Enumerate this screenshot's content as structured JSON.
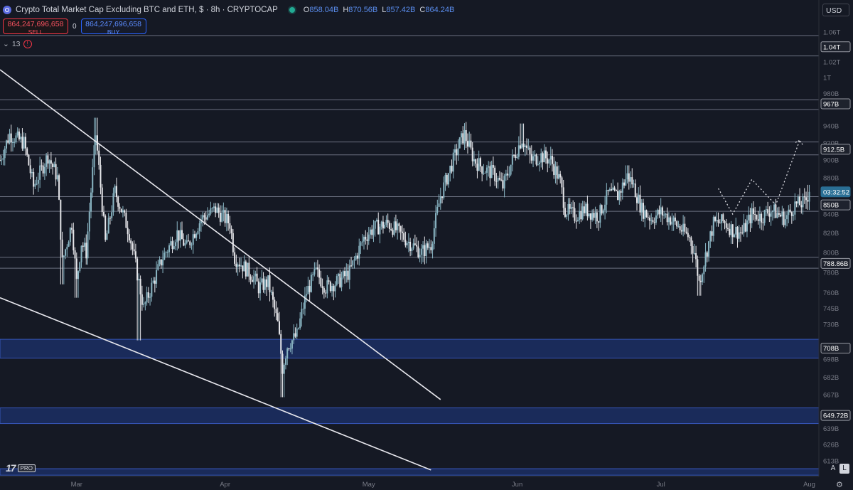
{
  "header": {
    "title": "Crypto Total Market Cap Excluding BTC and ETH, $ · 8h · CRYPTOCAP",
    "ohlc": [
      {
        "k": "O",
        "v": "858.04B"
      },
      {
        "k": "H",
        "v": "870.56B"
      },
      {
        "k": "L",
        "v": "857.42B"
      },
      {
        "k": "C",
        "v": "864.24B"
      }
    ]
  },
  "trade": {
    "sell_price": "864,247,696,658",
    "sell_label": "SELL",
    "spread": "0",
    "buy_price": "864,247,696,658",
    "buy_label": "BUY"
  },
  "indicators": {
    "count": "13",
    "error_mark": "!"
  },
  "currency": "USD",
  "logo": {
    "pro": "PRO"
  },
  "scale_buttons": {
    "auto": "A",
    "log": "L"
  },
  "colors": {
    "background": "#151924",
    "candle_up": "#8ab6c4",
    "candle_down": "#e6e6ea",
    "trendline": "#e8e8ee",
    "zone": "#1f3a87",
    "zone_border": "#3656b8",
    "level_line": "#6b7080",
    "price_tag": "#2a6f95"
  },
  "chart_data": {
    "type": "candlestick",
    "title": "Crypto Total Market Cap Excluding BTC and ETH, $ · 8h · CRYPTOCAP",
    "y_scale": "log",
    "ylim": [
      601,
      1104
    ],
    "y_ticks": [
      {
        "v": 1060,
        "label": "1.06T"
      },
      {
        "v": 1020,
        "label": "1.02T"
      },
      {
        "v": 1000,
        "label": "1T"
      },
      {
        "v": 980,
        "label": "980B"
      },
      {
        "v": 940,
        "label": "940B"
      },
      {
        "v": 920,
        "label": "920B"
      },
      {
        "v": 900,
        "label": "900B"
      },
      {
        "v": 880,
        "label": "880B"
      },
      {
        "v": 840,
        "label": "840B"
      },
      {
        "v": 820,
        "label": "820B"
      },
      {
        "v": 800,
        "label": "800B"
      },
      {
        "v": 780,
        "label": "780B"
      },
      {
        "v": 760,
        "label": "760B"
      },
      {
        "v": 745,
        "label": "745B"
      },
      {
        "v": 730,
        "label": "730B"
      },
      {
        "v": 698,
        "label": "698B"
      },
      {
        "v": 682,
        "label": "682B"
      },
      {
        "v": 667,
        "label": "667B"
      },
      {
        "v": 639,
        "label": "639B"
      },
      {
        "v": 626,
        "label": "626B"
      },
      {
        "v": 613,
        "label": "613B"
      }
    ],
    "x_labels": [
      {
        "date": "2024-03-01",
        "label": "Mar"
      },
      {
        "date": "2024-04-01",
        "label": "Apr"
      },
      {
        "date": "2024-05-01",
        "label": "May"
      },
      {
        "date": "2024-06-01",
        "label": "Jun"
      },
      {
        "date": "2024-07-01",
        "label": "Jul"
      },
      {
        "date": "2024-08-01",
        "label": "Aug"
      }
    ],
    "x_range": [
      "2024-02-14",
      "2024-08-03"
    ],
    "price_tags": [
      {
        "v": 1040,
        "label": "1.04T",
        "style": "outline"
      },
      {
        "v": 967,
        "label": "967B",
        "style": "outline"
      },
      {
        "v": 912.5,
        "label": "912.5B",
        "style": "outline"
      },
      {
        "v": 864.24,
        "label": "03:32:52",
        "style": "current"
      },
      {
        "v": 850,
        "label": "850B",
        "style": "outline"
      },
      {
        "v": 788.86,
        "label": "788.86B",
        "style": "outline"
      },
      {
        "v": 708,
        "label": "708B",
        "style": "outline"
      },
      {
        "v": 649.72,
        "label": "649.72B",
        "style": "outline"
      }
    ],
    "horizontal_levels": [
      1055,
      1028,
      972,
      960,
      921,
      906,
      859,
      843,
      795,
      784
    ],
    "zones": [
      [
        699,
        716
      ],
      [
        643,
        656
      ],
      [
        602,
        607
      ]
    ],
    "trendlines": [
      {
        "from": [
          "2024-02-14",
          1010
        ],
        "to": [
          "2024-05-16",
          663
        ]
      },
      {
        "from": [
          "2024-02-14",
          755
        ],
        "to": [
          "2024-05-14",
          606
        ]
      }
    ],
    "projection": [
      [
        "2024-07-13",
        868
      ],
      [
        "2024-07-16",
        840
      ],
      [
        "2024-07-20",
        878
      ],
      [
        "2024-07-25",
        850
      ],
      [
        "2024-07-30",
        923
      ]
    ],
    "path": [
      [
        "2024-02-14",
        900
      ],
      [
        "2024-02-16",
        930
      ],
      [
        "2024-02-19",
        920
      ],
      [
        "2024-02-21",
        870
      ],
      [
        "2024-02-24",
        905
      ],
      [
        "2024-02-26",
        880
      ],
      [
        "2024-02-27",
        790
      ],
      [
        "2024-02-29",
        830
      ],
      [
        "2024-03-01",
        770
      ],
      [
        "2024-03-02",
        810
      ],
      [
        "2024-03-03",
        800
      ],
      [
        "2024-03-05",
        930
      ],
      [
        "2024-03-07",
        810
      ],
      [
        "2024-03-09",
        865
      ],
      [
        "2024-03-12",
        820
      ],
      [
        "2024-03-14",
        770
      ],
      [
        "2024-03-15",
        745
      ],
      [
        "2024-03-17",
        770
      ],
      [
        "2024-03-19",
        795
      ],
      [
        "2024-03-22",
        820
      ],
      [
        "2024-03-24",
        805
      ],
      [
        "2024-03-27",
        835
      ],
      [
        "2024-03-30",
        845
      ],
      [
        "2024-04-02",
        830
      ],
      [
        "2024-04-03",
        795
      ],
      [
        "2024-04-05",
        785
      ],
      [
        "2024-04-07",
        775
      ],
      [
        "2024-04-08",
        765
      ],
      [
        "2024-04-10",
        770
      ],
      [
        "2024-04-12",
        730
      ],
      [
        "2024-04-13",
        690
      ],
      [
        "2024-04-14",
        710
      ],
      [
        "2024-04-16",
        720
      ],
      [
        "2024-04-18",
        760
      ],
      [
        "2024-04-20",
        780
      ],
      [
        "2024-04-22",
        765
      ],
      [
        "2024-04-25",
        772
      ],
      [
        "2024-04-27",
        780
      ],
      [
        "2024-04-30",
        815
      ],
      [
        "2024-05-02",
        825
      ],
      [
        "2024-05-05",
        830
      ],
      [
        "2024-05-07",
        822
      ],
      [
        "2024-05-09",
        812
      ],
      [
        "2024-05-12",
        800
      ],
      [
        "2024-05-14",
        808
      ],
      [
        "2024-05-16",
        860
      ],
      [
        "2024-05-18",
        890
      ],
      [
        "2024-05-20",
        920
      ],
      [
        "2024-05-21",
        930
      ],
      [
        "2024-05-23",
        900
      ],
      [
        "2024-05-25",
        890
      ],
      [
        "2024-05-27",
        885
      ],
      [
        "2024-05-29",
        870
      ],
      [
        "2024-05-31",
        900
      ],
      [
        "2024-06-02",
        925
      ],
      [
        "2024-06-04",
        900
      ],
      [
        "2024-06-06",
        905
      ],
      [
        "2024-06-08",
        900
      ],
      [
        "2024-06-10",
        875
      ],
      [
        "2024-06-11",
        845
      ],
      [
        "2024-06-13",
        838
      ],
      [
        "2024-06-15",
        845
      ],
      [
        "2024-06-18",
        838
      ],
      [
        "2024-06-20",
        862
      ],
      [
        "2024-06-22",
        860
      ],
      [
        "2024-06-24",
        882
      ],
      [
        "2024-06-25",
        875
      ],
      [
        "2024-06-27",
        845
      ],
      [
        "2024-06-29",
        835
      ],
      [
        "2024-07-01",
        842
      ],
      [
        "2024-07-03",
        835
      ],
      [
        "2024-07-05",
        825
      ],
      [
        "2024-07-07",
        815
      ],
      [
        "2024-07-08",
        800
      ],
      [
        "2024-07-09",
        770
      ],
      [
        "2024-07-10",
        790
      ],
      [
        "2024-07-12",
        830
      ],
      [
        "2024-07-14",
        832
      ],
      [
        "2024-07-16",
        823
      ],
      [
        "2024-07-18",
        820
      ],
      [
        "2024-07-20",
        840
      ],
      [
        "2024-07-22",
        837
      ],
      [
        "2024-07-24",
        845
      ],
      [
        "2024-07-27",
        835
      ],
      [
        "2024-07-29",
        850
      ],
      [
        "2024-07-31",
        852
      ],
      [
        "2024-08-01",
        864
      ]
    ],
    "extremes": [
      [
        "2024-02-27",
        768
      ],
      [
        "2024-03-01",
        755
      ],
      [
        "2024-03-05",
        950
      ],
      [
        "2024-03-14",
        715
      ],
      [
        "2024-03-30",
        852
      ],
      [
        "2024-04-13",
        665
      ],
      [
        "2024-04-20",
        790
      ],
      [
        "2024-05-12",
        790
      ],
      [
        "2024-05-21",
        940
      ],
      [
        "2024-06-02",
        943
      ],
      [
        "2024-06-24",
        894
      ],
      [
        "2024-07-09",
        757
      ],
      [
        "2024-08-01",
        872
      ]
    ]
  }
}
